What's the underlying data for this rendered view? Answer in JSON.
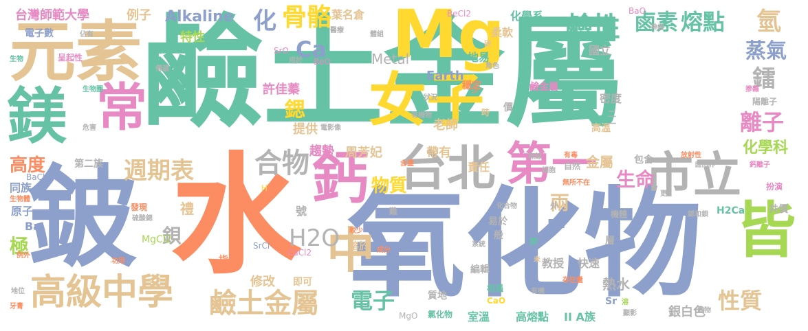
{
  "palette": {
    "teal": "#66c2a5",
    "orange": "#fc8d62",
    "blue": "#8da0cb",
    "pink": "#e78ac3",
    "green": "#a6d854",
    "yellow": "#ffd92f",
    "tan": "#e5c494",
    "gray": "#b3b3b3"
  },
  "words": {
    "w1": "鹼土金屬",
    "w2": "水",
    "w3": "氧化物",
    "w4": "鈹",
    "w5": "元素",
    "w6": "鎂",
    "w7": "常",
    "w8": "Mg",
    "w9": "女子",
    "w10": "鈣",
    "w11": "台北",
    "w12": "市立",
    "w13": "中",
    "w14": "第一",
    "w15": "皆",
    "w16": "高級中學",
    "w17": "鹼土金屬",
    "w18": "週期表",
    "w19": "合物",
    "w20": "骨骼",
    "w21": "鹼性",
    "w22": "鹵素",
    "w23": "熔點",
    "w24": "氫",
    "w25": "蒸氣",
    "w26": "鐳",
    "w27": "離子",
    "w28": "化學科",
    "w29": "生命",
    "w30": "物質",
    "w31": "H2O",
    "w32": "電子",
    "w33": "性質",
    "w34": "高度",
    "w35": "極",
    "w36": "鋇",
    "w37": "Ca",
    "w38": "化",
    "w39": "鍶",
    "w40": "Alkaline",
    "w41": "台灣師範大學",
    "w42": "例子",
    "w43": "電子數",
    "w44": "特性",
    "w45": "Metal",
    "w46": "Earth",
    "w47": "許佳蓁",
    "w48": "提供",
    "w49": "老師",
    "w50": "周芳妃",
    "w51": "趨勢",
    "w52": "帶有",
    "w53": "責任",
    "w54": "金屬",
    "w55": "兩",
    "w56": "國立",
    "w57": "地易",
    "w58": "化學系",
    "w59": "葉名倉",
    "w60": "柔軟",
    "w61": "穩定",
    "w62": "鹼金屬",
    "w63": "密度",
    "w64": "陽離子",
    "w65": "高溫",
    "w66": "第二族",
    "w67": "同族",
    "w68": "原子",
    "w69": "Ba",
    "w70": "禮",
    "w71": "號",
    "w72": "修改",
    "w73": "即可",
    "w74": "溶於",
    "w75": "Ra",
    "w76": "易於",
    "w77": "般",
    "w78": "教授",
    "w79": "快速",
    "w80": "編輯",
    "w81": "質地",
    "w82": "熱水",
    "w83": "銀白色",
    "w84": "Sr",
    "w85": "高熔點",
    "w86": "II A族",
    "w87": "室溫",
    "w88": "CaO",
    "w89": "MgO",
    "w90": "共價",
    "w91": "H2Ca",
    "w92": "層",
    "w93": "包含",
    "w94": "自然",
    "w95": "指",
    "w96": "BeCl2",
    "w97": "BaO",
    "w98": "SrO",
    "w99": "BeO",
    "w100": "鈉",
    "w101": "佔有",
    "w102": "呈起性",
    "w103": "生物",
    "w104": "傳遞",
    "w105": "用於",
    "w106": "醫療",
    "w107": "體組",
    "w108": "神經",
    "w109": "角色",
    "w110": "摻雜",
    "w111": "生物圈",
    "w112": "危害",
    "w113": "電影像",
    "w114": "有機物",
    "w115": "狀況",
    "w116": "價",
    "w117": "時",
    "w118": "少",
    "w119": "BaCl",
    "w120": "生物體",
    "w121": "H",
    "w122": "發現",
    "w123": "硫酸鍶",
    "w124": "較少",
    "w125": "難",
    "w126": "MgCl2",
    "w127": "CaCl2",
    "w128": "SrCl",
    "w129": "成分",
    "w130": "例外",
    "w131": "功用",
    "w132": "地位",
    "w133": "牙膏",
    "w134": "含量",
    "w135": "細胞",
    "w136": "無線",
    "w137": "有毒",
    "w138": "無所不在",
    "w139": "放射性",
    "w140": "自然界",
    "w141": "鈣離子",
    "w142": "扮演",
    "w143": "更",
    "w144": "機體",
    "w145": "鍶和鋇",
    "w146": "化合物",
    "w147": "系統",
    "w148": "外",
    "w149": "鉀",
    "w150": "未",
    "w151": "有機",
    "w152": "存在量",
    "w153": "相遇",
    "w154": "氯化物",
    "w155": "溶",
    "w156": "顯影",
    "w157": "成物",
    "w158": "二",
    "w159": "一",
    "w160": "硬"
  }
}
